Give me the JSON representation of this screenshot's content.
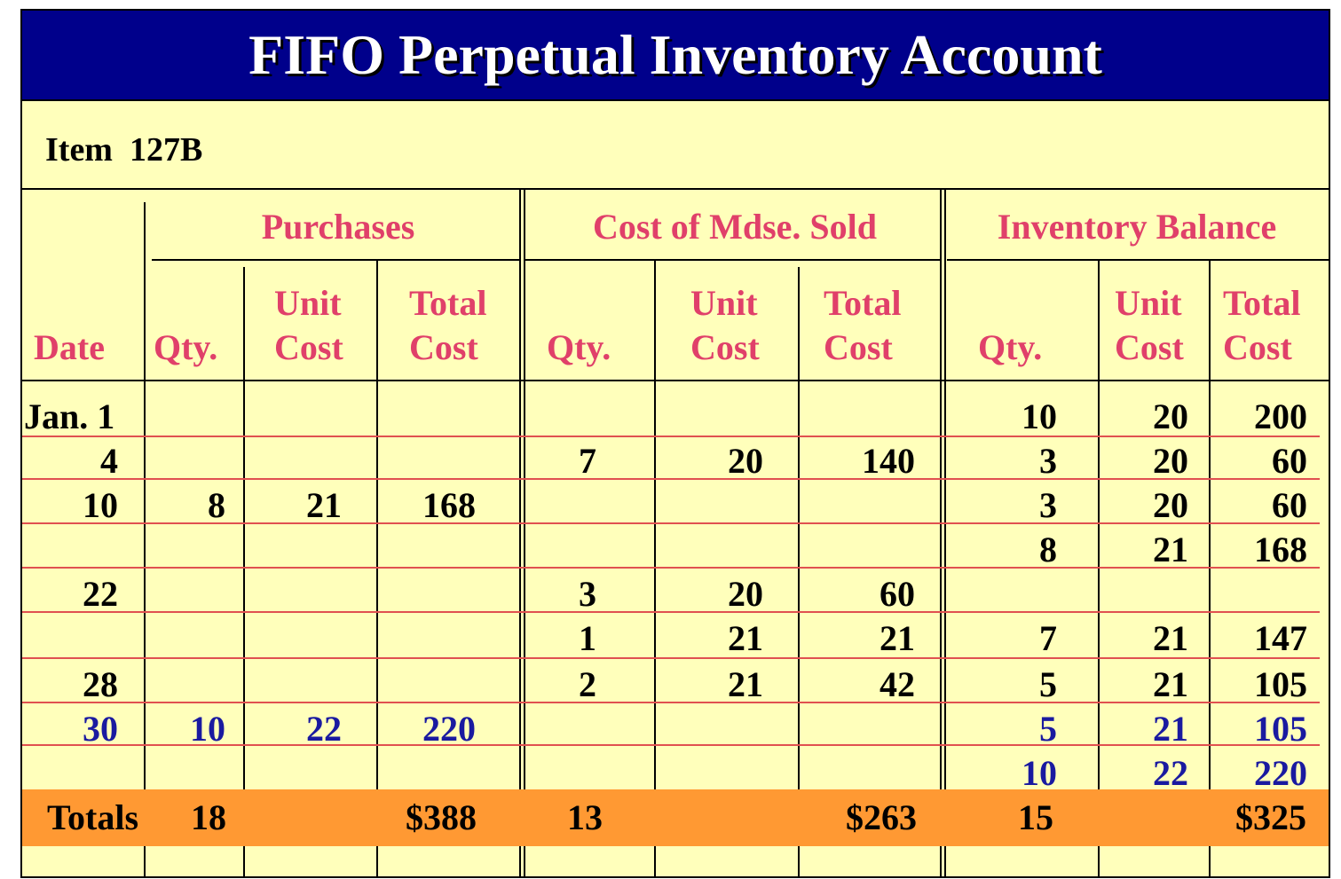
{
  "title": "FIFO Perpetual Inventory Account",
  "item_label": "Item  127B",
  "groups": {
    "purchases": "Purchases",
    "cost_sold": "Cost of Mdse. Sold",
    "balance": "Inventory Balance"
  },
  "headers": {
    "date": "Date",
    "qty": "Qty.",
    "unit": "Unit",
    "total": "Total",
    "cost": "Cost"
  },
  "rows": [
    {
      "date": "Jan. 1",
      "p_qty": "",
      "p_unit": "",
      "p_total": "",
      "s_qty": "",
      "s_unit": "",
      "s_total": "",
      "b_qty": "10",
      "b_unit": "20",
      "b_total": "200",
      "color": "black"
    },
    {
      "date": "4",
      "p_qty": "",
      "p_unit": "",
      "p_total": "",
      "s_qty": "7",
      "s_unit": "20",
      "s_total": "140",
      "b_qty": "3",
      "b_unit": "20",
      "b_total": "60",
      "color": "black"
    },
    {
      "date": "10",
      "p_qty": "8",
      "p_unit": "21",
      "p_total": "168",
      "s_qty": "",
      "s_unit": "",
      "s_total": "",
      "b_qty": "3",
      "b_unit": "20",
      "b_total": "60",
      "color": "black"
    },
    {
      "date": "",
      "p_qty": "",
      "p_unit": "",
      "p_total": "",
      "s_qty": "",
      "s_unit": "",
      "s_total": "",
      "b_qty": "8",
      "b_unit": "21",
      "b_total": "168",
      "color": "black"
    },
    {
      "date": "22",
      "p_qty": "",
      "p_unit": "",
      "p_total": "",
      "s_qty": "3",
      "s_unit": "20",
      "s_total": "60",
      "b_qty": "",
      "b_unit": "",
      "b_total": "",
      "color": "black"
    },
    {
      "date": "",
      "p_qty": "",
      "p_unit": "",
      "p_total": "",
      "s_qty": "1",
      "s_unit": "21",
      "s_total": "21",
      "b_qty": "7",
      "b_unit": "21",
      "b_total": "147",
      "color": "black"
    },
    {
      "date": "28",
      "p_qty": "",
      "p_unit": "",
      "p_total": "",
      "s_qty": "2",
      "s_unit": "21",
      "s_total": "42",
      "b_qty": "5",
      "b_unit": "21",
      "b_total": "105",
      "color": "black"
    },
    {
      "date": "30",
      "p_qty": "10",
      "p_unit": "22",
      "p_total": "220",
      "s_qty": "",
      "s_unit": "",
      "s_total": "",
      "b_qty": "5",
      "b_unit": "21",
      "b_total": "105",
      "color": "blue"
    },
    {
      "date": "",
      "p_qty": "",
      "p_unit": "",
      "p_total": "",
      "s_qty": "",
      "s_unit": "",
      "s_total": "",
      "b_qty": "10",
      "b_unit": "22",
      "b_total": "220",
      "color": "blue"
    }
  ],
  "totals": {
    "label": "Totals",
    "p_qty": "18",
    "p_total": "$388",
    "s_qty": "13",
    "s_total": "$263",
    "b_qty": "15",
    "b_total": "$325"
  },
  "colors": {
    "banner": "#00008b",
    "sheet": "#ffffbb",
    "header_text": "#e0406a",
    "totals_bar": "#ff9933",
    "rule_line": "#e05050",
    "blue_text": "#1a1aa0"
  }
}
